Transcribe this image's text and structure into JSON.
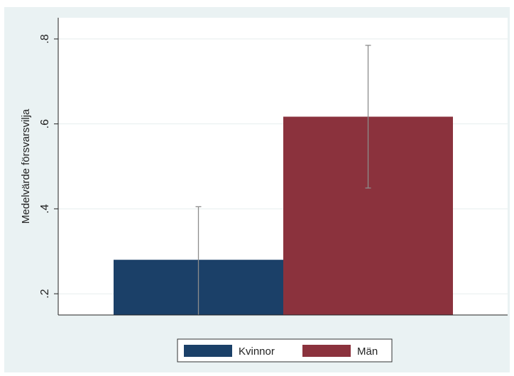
{
  "chart_data": {
    "type": "bar",
    "title": "",
    "xlabel": "",
    "ylabel": "Medelvärde försvarsvilja",
    "ylim": [
      0.15,
      0.85
    ],
    "yticks": [
      0.2,
      0.4,
      0.6,
      0.8
    ],
    "ytick_labels": [
      ".2",
      ".4",
      ".6",
      ".8"
    ],
    "grid": true,
    "legend_position": "bottom",
    "series": [
      {
        "name": "Kvinnor",
        "value": 0.28,
        "ci": [
          0.15,
          0.405
        ],
        "color": "#1b4068"
      },
      {
        "name": "Män",
        "value": 0.617,
        "ci": [
          0.449,
          0.785
        ],
        "color": "#8b323d"
      }
    ]
  }
}
